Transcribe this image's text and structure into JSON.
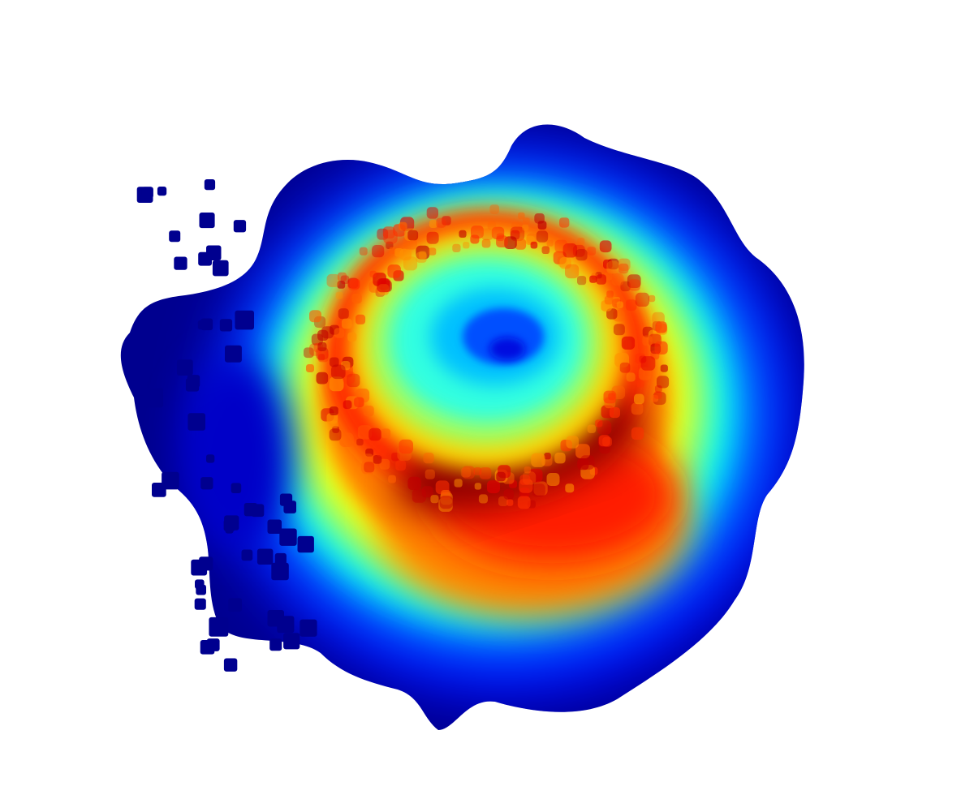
{
  "image": {
    "subject": "",
    "background_color": "#ffffff"
  },
  "colormap": {
    "name": "jet",
    "stops": [
      "#00008f",
      "#0000ff",
      "#0080ff",
      "#00ffff",
      "#80ff80",
      "#ffff00",
      "#ff8000",
      "#ff0000",
      "#800000"
    ]
  }
}
